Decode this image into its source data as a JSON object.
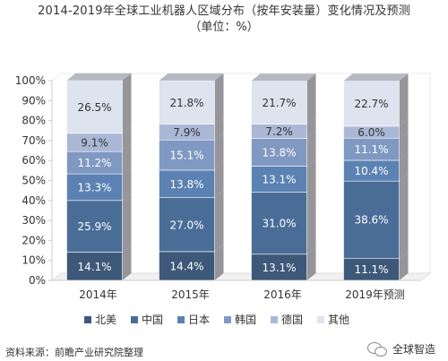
{
  "chart_data": {
    "type": "bar",
    "stacked": true,
    "title": "2014-2019年全球工业机器人区域分布（按年安装量）变化情况及预测",
    "subtitle": "（单位：%）",
    "categories": [
      "2014年",
      "2015年",
      "2016年",
      "2019年预测"
    ],
    "ylim": [
      0,
      100
    ],
    "yticks": [
      "0%",
      "10%",
      "20%",
      "30%",
      "40%",
      "50%",
      "60%",
      "70%",
      "80%",
      "90%",
      "100%"
    ],
    "legend_position": "bottom",
    "series": [
      {
        "name": "北美",
        "values": [
          14.1,
          14.4,
          13.1,
          11.1
        ],
        "labels": [
          "14.1%",
          "14.4%",
          "13.1%",
          "11.1%"
        ],
        "color": "#3d5878",
        "text_color": "#ffffff"
      },
      {
        "name": "中国",
        "values": [
          25.9,
          27.0,
          31.0,
          38.6
        ],
        "labels": [
          "25.9%",
          "27.0%",
          "31.0%",
          "38.6%"
        ],
        "color": "#4a6d98",
        "text_color": "#ffffff"
      },
      {
        "name": "日本",
        "values": [
          13.3,
          13.8,
          13.1,
          10.4
        ],
        "labels": [
          "13.3%",
          "13.8%",
          "13.1%",
          "10.4%"
        ],
        "color": "#5b82b2",
        "text_color": "#ffffff"
      },
      {
        "name": "韩国",
        "values": [
          11.2,
          15.1,
          13.8,
          11.1
        ],
        "labels": [
          "11.2%",
          "15.1%",
          "13.8%",
          "11.1%"
        ],
        "color": "#8099c3",
        "text_color": "#ffffff"
      },
      {
        "name": "德国",
        "values": [
          9.1,
          7.9,
          7.2,
          6.0
        ],
        "labels": [
          "9.1%",
          "7.9%",
          "7.2%",
          "6.0%"
        ],
        "color": "#aab8d6",
        "text_color": "#333333"
      },
      {
        "name": "其他",
        "values": [
          26.5,
          21.8,
          21.7,
          22.7
        ],
        "labels": [
          "26.5%",
          "21.8%",
          "21.7%",
          "22.7%"
        ],
        "color": "#dde3ef",
        "text_color": "#333333"
      }
    ]
  },
  "source": "资料来源：前瞻产业研究院整理",
  "brand": "全球智造",
  "colors": {
    "axis": "#cccccc",
    "text": "#333333",
    "side_shade": "#8f8f95",
    "top_shade": "#b7b9c2"
  }
}
